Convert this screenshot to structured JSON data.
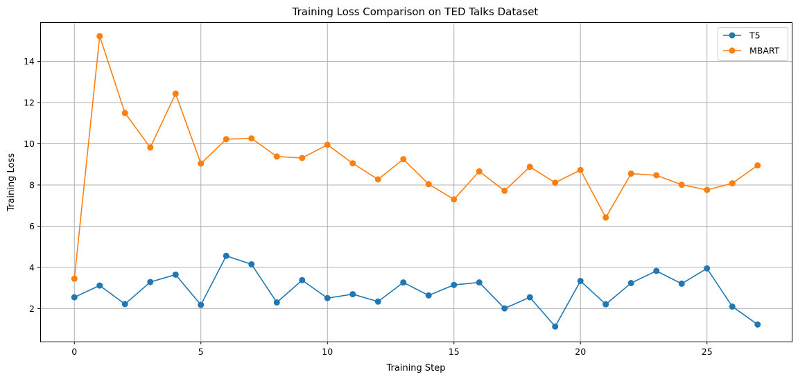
{
  "chart_data": {
    "type": "line",
    "title": "Training Loss Comparison on TED Talks Dataset",
    "xlabel": "Training Step",
    "ylabel": "Training Loss",
    "xlim": [
      -1.35,
      28.35
    ],
    "ylim": [
      0.4,
      15.9
    ],
    "xticks": [
      0,
      5,
      10,
      15,
      20,
      25
    ],
    "yticks": [
      2,
      4,
      6,
      8,
      10,
      12,
      14
    ],
    "grid": true,
    "legend_position": "top-right",
    "x": [
      0,
      1,
      2,
      3,
      4,
      5,
      6,
      7,
      8,
      9,
      10,
      11,
      12,
      13,
      14,
      15,
      16,
      17,
      18,
      19,
      20,
      21,
      22,
      23,
      24,
      25,
      26,
      27
    ],
    "series": [
      {
        "name": "T5",
        "color": "#1f77b4",
        "marker": "circle",
        "values": [
          2.55,
          3.12,
          2.22,
          3.29,
          3.65,
          2.18,
          4.56,
          4.15,
          2.3,
          3.38,
          2.51,
          2.7,
          2.34,
          3.27,
          2.64,
          3.15,
          3.27,
          2.01,
          2.55,
          1.13,
          3.34,
          2.21,
          3.24,
          3.83,
          3.21,
          3.95,
          2.1,
          1.23
        ]
      },
      {
        "name": "MBART",
        "color": "#ff7f0e",
        "marker": "circle",
        "values": [
          3.45,
          15.22,
          11.49,
          9.82,
          12.43,
          9.04,
          10.22,
          10.26,
          9.38,
          9.31,
          9.95,
          9.05,
          8.27,
          9.25,
          8.04,
          7.3,
          8.66,
          7.72,
          8.88,
          8.11,
          8.73,
          6.42,
          8.55,
          8.47,
          8.01,
          7.76,
          8.08,
          8.95
        ]
      }
    ]
  }
}
